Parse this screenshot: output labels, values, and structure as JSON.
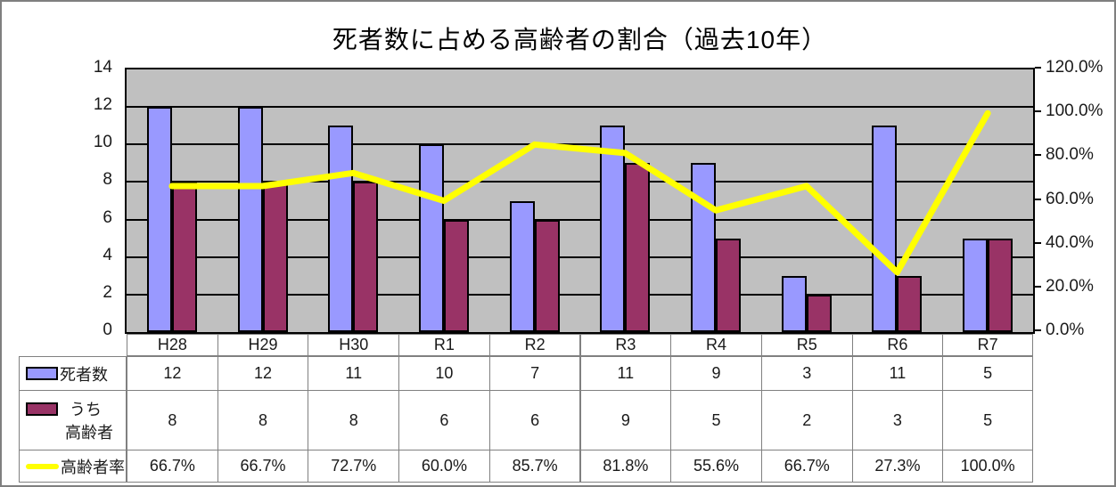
{
  "title": "死者数に占める高齢者の割合（過去10年）",
  "chart_data": {
    "type": "bar",
    "subtype": "combo-bar-line-dual-axis",
    "title": "死者数に占める高齢者の割合（過去10年）",
    "categories": [
      "H28",
      "H29",
      "H30",
      "R1",
      "R2",
      "R3",
      "R4",
      "R5",
      "R6",
      "R7"
    ],
    "series": [
      {
        "name": "死者数",
        "chart": "bar",
        "axis": "left",
        "color": "#9999ff",
        "values": [
          12,
          12,
          11,
          10,
          7,
          11,
          9,
          3,
          11,
          5
        ]
      },
      {
        "name": "うち高齢者",
        "chart": "bar",
        "axis": "left",
        "color": "#993366",
        "values": [
          8,
          8,
          8,
          6,
          6,
          9,
          5,
          2,
          3,
          5
        ]
      },
      {
        "name": "高齢者率",
        "chart": "line",
        "axis": "right",
        "color": "#ffff00",
        "values": [
          66.7,
          66.7,
          72.7,
          60.0,
          85.7,
          81.8,
          55.6,
          66.7,
          27.3,
          100.0
        ]
      }
    ],
    "left_axis": {
      "min": 0,
      "max": 14,
      "step": 2,
      "labels": [
        "0",
        "2",
        "4",
        "6",
        "8",
        "10",
        "12",
        "14"
      ]
    },
    "right_axis": {
      "min": 0,
      "max": 120,
      "step": 20,
      "labels": [
        "0.0%",
        "20.0%",
        "40.0%",
        "60.0%",
        "80.0%",
        "100.0%",
        "120.0%"
      ]
    },
    "grid": true,
    "plot_background": "#c0c0c0",
    "gridline_color": "#000000",
    "legend_position": "data-table-left"
  },
  "data_table": {
    "rows": [
      {
        "label_lines": [
          "死者数"
        ],
        "swatch": "blue-bar",
        "display_values": [
          "12",
          "12",
          "11",
          "10",
          "7",
          "11",
          "9",
          "3",
          "11",
          "5"
        ]
      },
      {
        "label_lines": [
          "うち",
          "高齢者"
        ],
        "swatch": "maroon-bar",
        "display_values": [
          "8",
          "8",
          "8",
          "6",
          "6",
          "9",
          "5",
          "2",
          "3",
          "5"
        ]
      },
      {
        "label_lines": [
          "高齢者率"
        ],
        "swatch": "yellow-line",
        "display_values": [
          "66.7%",
          "66.7%",
          "72.7%",
          "60.0%",
          "85.7%",
          "81.8%",
          "55.6%",
          "66.7%",
          "27.3%",
          "100.0%"
        ]
      }
    ]
  },
  "colors": {
    "deaths_bar": "#9999ff",
    "elderly_bar": "#993366",
    "rate_line": "#ffff00",
    "plot_bg": "#c0c0c0",
    "table_border": "#808080",
    "frame_border": "#7f7f7f"
  }
}
